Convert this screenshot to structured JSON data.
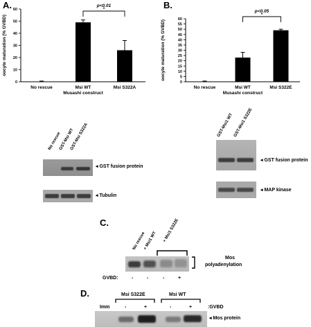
{
  "figure": {
    "panel_a_letter": "A.",
    "panel_b_letter": "B.",
    "panel_c_letter": "C.",
    "panel_d_letter": "D."
  },
  "chart_data": [
    {
      "type": "bar",
      "panel": "A",
      "ylabel": "oocyte maturation (% GVBD)",
      "xlabel": "Musashi construct",
      "categories": [
        "No rescue",
        "Msi WT",
        "Msi S322A"
      ],
      "values": [
        0,
        49,
        26
      ],
      "errors": [
        0,
        2,
        8
      ],
      "yticks": [
        "0",
        "10",
        "20",
        "30",
        "40",
        "50",
        "60"
      ],
      "ylim": [
        0,
        60
      ],
      "significance": {
        "text": "p<0.01",
        "star": "*",
        "between": [
          "Msi WT",
          "Msi S322A"
        ]
      }
    },
    {
      "type": "bar",
      "panel": "B",
      "ylabel": "oocyte maturation (% GVBD)",
      "xlabel": "Musashi construct",
      "categories": [
        "No rescue",
        "Msi WT",
        "Msi S322E"
      ],
      "values": [
        0,
        23,
        49
      ],
      "errors": [
        0,
        5,
        1
      ],
      "yticks": [
        "0",
        "5",
        "10",
        "15",
        "20",
        "25",
        "30",
        "35",
        "40",
        "45",
        "50",
        "55",
        "60"
      ],
      "ylim": [
        0,
        60
      ],
      "significance": {
        "text": "p<0.05",
        "star": "*",
        "between": [
          "Msi WT",
          "Msi S322E"
        ]
      }
    }
  ],
  "blot_a": {
    "lanes": [
      "No rescue",
      "GST-Msi WT",
      "GST-Msi S322A"
    ],
    "rows": [
      "GST fusion protein",
      "Tubulin"
    ]
  },
  "blot_b": {
    "lanes": [
      "GST-Msi1 WT",
      "GST-Msi1 S322E"
    ],
    "rows": [
      "GST fusion protein",
      "MAP kinase"
    ]
  },
  "panel_c": {
    "lanes": [
      "No rescue",
      "+ Msi1 WT",
      "+ Msi1 S322E"
    ],
    "band_label_line1": "Mos",
    "band_label_line2": "polyadenylation",
    "gvbd_label": "GVBD:",
    "gvbd_states": [
      "-",
      "-",
      "-",
      "+"
    ]
  },
  "panel_d": {
    "group_1": "Msi S322E",
    "group_2": "Msi WT",
    "imm_label": "Imm",
    "gvbd_label": ":GVBD",
    "states": [
      "-",
      "+",
      "-",
      "+"
    ],
    "band_label": "Mos protein"
  }
}
